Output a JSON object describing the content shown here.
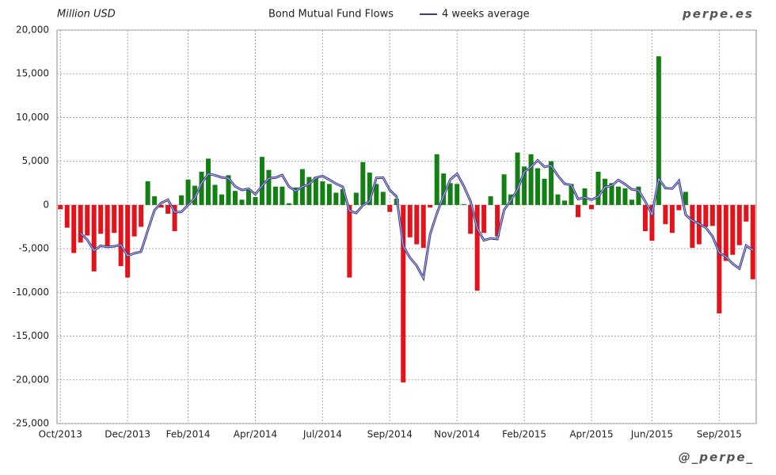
{
  "chart_data": {
    "type": "bar",
    "title": "Bond Mutual Fund Flows",
    "y_label": "Million USD",
    "watermark_top": "perpe.es",
    "watermark_bottom": "@_perpe_",
    "categories": [
      "Oct/2013",
      null,
      null,
      null,
      null,
      null,
      null,
      null,
      null,
      null,
      "Dec/2013",
      null,
      null,
      null,
      null,
      null,
      null,
      null,
      null,
      "Feb/2014",
      null,
      null,
      null,
      null,
      null,
      null,
      null,
      null,
      null,
      "Apr/2014",
      null,
      null,
      null,
      null,
      null,
      null,
      null,
      null,
      null,
      "Jul/2014",
      null,
      null,
      null,
      null,
      null,
      null,
      null,
      null,
      null,
      "Sep/2014",
      null,
      null,
      null,
      null,
      null,
      null,
      null,
      null,
      null,
      "Nov/2014",
      null,
      null,
      null,
      null,
      null,
      null,
      null,
      null,
      null,
      "Feb/2015",
      null,
      null,
      null,
      null,
      null,
      null,
      null,
      null,
      null,
      "Apr/2015",
      null,
      null,
      null,
      null,
      null,
      null,
      null,
      null,
      "Jun/2015",
      null,
      null,
      null,
      null,
      null,
      null,
      null,
      null,
      null,
      "Sep/2015",
      null,
      null,
      null,
      null,
      null
    ],
    "values": [
      -500,
      -2600,
      -5500,
      -4300,
      -3500,
      -7600,
      -3300,
      -4800,
      -3200,
      -7000,
      -8300,
      -3600,
      -2500,
      2700,
      1000,
      -300,
      -1000,
      -3000,
      1100,
      2900,
      2200,
      3800,
      5300,
      2300,
      1200,
      3400,
      1600,
      600,
      1800,
      900,
      5500,
      4000,
      2100,
      2100,
      200,
      2000,
      4100,
      3200,
      3200,
      2700,
      2400,
      1400,
      1800,
      -8300,
      1400,
      4900,
      3700,
      2400,
      1500,
      -800,
      700,
      -20300,
      -3700,
      -4500,
      -4900,
      -300,
      5800,
      3600,
      2500,
      2400,
      100,
      -3300,
      -9800,
      -3200,
      1000,
      -3600,
      3500,
      1200,
      6000,
      4400,
      5800,
      4200,
      3000,
      5000,
      1200,
      500,
      2400,
      -1400,
      1900,
      -500,
      3800,
      3000,
      2500,
      2100,
      1900,
      600,
      2100,
      -3000,
      -4100,
      17000,
      -2200,
      -3200,
      -600,
      1500,
      -4900,
      -4500,
      -2500,
      -2400,
      -12400,
      -6400,
      -5700,
      -4600,
      -1900,
      -8500
    ],
    "positive_color": "#138013",
    "negative_color": "#e3131b",
    "series": [
      {
        "name": "4 weeks average",
        "color": "#3c3c8e",
        "values": [
          null,
          null,
          null,
          -3225,
          -3975,
          -5225,
          -4675,
          -4800,
          -4725,
          -4575,
          -5825,
          -5525,
          -5350,
          -2925,
          -600,
          225,
          600,
          -825,
          -800,
          0,
          800,
          2500,
          3550,
          3400,
          3150,
          3050,
          2125,
          1700,
          1850,
          1225,
          2200,
          3050,
          3125,
          3425,
          2100,
          1600,
          2100,
          2375,
          3125,
          3300,
          2875,
          2425,
          2075,
          -675,
          -925,
          -50,
          425,
          3100,
          3125,
          1700,
          950,
          -4725,
          -6025,
          -6950,
          -8350,
          -3350,
          -975,
          1050,
          2900,
          3575,
          2150,
          425,
          -2650,
          -4050,
          -3825,
          -3900,
          -575,
          525,
          1775,
          3775,
          4350,
          5100,
          4350,
          4500,
          3350,
          2425,
          2275,
          675,
          850,
          600,
          950,
          2050,
          2200,
          2850,
          2375,
          1775,
          1675,
          400,
          -1100,
          3000,
          1925,
          1875,
          2750,
          -1125,
          -1800,
          -2125,
          -2600,
          -3575,
          -5450,
          -5925,
          -6725,
          -7275,
          -4650,
          -5175
        ]
      }
    ],
    "ylim": [
      -25000,
      20000
    ],
    "yticks": [
      {
        "value": -25000,
        "label": "-25,000"
      },
      {
        "value": -20000,
        "label": "-20,000"
      },
      {
        "value": -15000,
        "label": "-15,000"
      },
      {
        "value": -10000,
        "label": "-10,000"
      },
      {
        "value": -5000,
        "label": "-5,000"
      },
      0,
      {
        "value": 5000,
        "label": "5,000"
      },
      {
        "value": 10000,
        "label": "10,000"
      },
      {
        "value": 15000,
        "label": "15,000"
      },
      {
        "value": 20000,
        "label": "20,000"
      }
    ],
    "grid": true
  }
}
